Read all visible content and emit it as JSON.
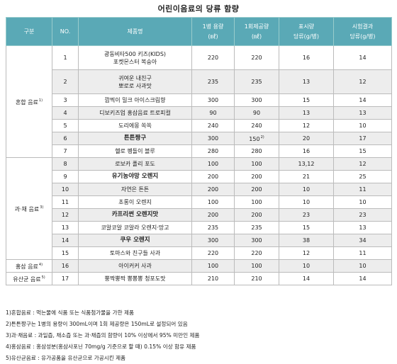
{
  "title": "어린이음료의 당류 함량",
  "table": {
    "header": [
      [
        "구분"
      ],
      [
        "NO."
      ],
      [
        "제품명"
      ],
      [
        "1병 용량",
        "(㎖)"
      ],
      [
        "1회제공량",
        "(㎖)"
      ],
      [
        "표시량",
        "당류(g/병)"
      ],
      [
        "시험결과",
        "당류(g/병)"
      ]
    ],
    "groups": [
      {
        "label": "혼합 음료",
        "note": "1)",
        "rows": [
          {
            "no": 1,
            "name": [
              "광동비타500 키즈(KIDS)",
              "포켓몬스터 복숭아"
            ],
            "bottle": 220,
            "serving": 220,
            "labeled": 16,
            "tested": 14
          },
          {
            "no": 2,
            "name": [
              "귀여운 내친구",
              "뽀로로 사과맛"
            ],
            "bottle": 235,
            "serving": 235,
            "labeled": 13,
            "tested": 12
          },
          {
            "no": 3,
            "name": [
              "깜찍이 밀크 아이스크림향"
            ],
            "bottle": 300,
            "serving": 300,
            "labeled": 15,
            "tested": 14
          },
          {
            "no": 4,
            "name": [
              "디보키즈업 홍삼음료 트로피컬"
            ],
            "bottle": 90,
            "serving": 90,
            "labeled": 13,
            "tested": 13
          },
          {
            "no": 5,
            "name": [
              "도리에몽 쏙쏙"
            ],
            "bottle": 240,
            "serving": 240,
            "labeled": 12,
            "tested": 10
          },
          {
            "no": 6,
            "name": [
              "튼튼짱구"
            ],
            "bold": true,
            "bottle": 300,
            "serving": 150,
            "serving_note": "2)",
            "labeled": 20,
            "tested": 17
          },
          {
            "no": 7,
            "name": [
              "헬로 펭돌이 블루"
            ],
            "bottle": 280,
            "serving": 280,
            "labeled": 16,
            "tested": 15
          }
        ]
      },
      {
        "label": "과·채 음료",
        "note": "3)",
        "rows": [
          {
            "no": 8,
            "name": [
              "로보카 폴리 포도"
            ],
            "bottle": 100,
            "serving": 100,
            "labeled": "13,12",
            "tested": 12
          },
          {
            "no": 9,
            "name": [
              "유기농야망 오렌지"
            ],
            "bold": true,
            "bottle": 200,
            "serving": 200,
            "labeled": 21,
            "tested": 25
          },
          {
            "no": 10,
            "name": [
              "자연은 튼튼"
            ],
            "bottle": 200,
            "serving": 200,
            "labeled": 10,
            "tested": 11
          },
          {
            "no": 11,
            "name": [
              "초롱이 오렌지"
            ],
            "bottle": 100,
            "serving": 100,
            "labeled": 10,
            "tested": 10
          },
          {
            "no": 12,
            "name": [
              "카프리썬 오렌지맛"
            ],
            "bold": true,
            "bottle": 200,
            "serving": 200,
            "labeled": 23,
            "tested": 23
          },
          {
            "no": 13,
            "name": [
              "코알코알 코알라 오렌지·망고"
            ],
            "bottle": 235,
            "serving": 235,
            "labeled": 15,
            "tested": 13
          },
          {
            "no": 14,
            "name": [
              "쿠우 오렌지"
            ],
            "bold": true,
            "bottle": 300,
            "serving": 300,
            "labeled": 38,
            "tested": 34
          },
          {
            "no": 15,
            "name": [
              "토마스와 친구들 사과"
            ],
            "bottle": 220,
            "serving": 220,
            "labeled": 12,
            "tested": 11
          }
        ]
      },
      {
        "label": "홍삼 음료",
        "note": "4)",
        "rows": [
          {
            "no": 16,
            "name": [
              "아이커커 사과"
            ],
            "bottle": 100,
            "serving": 100,
            "labeled": 10,
            "tested": 10
          }
        ]
      },
      {
        "label": "유산균 음료",
        "note": "5)",
        "rows": [
          {
            "no": 17,
            "name": [
              "뿡짝뿡짝 뽕뽕뽕 청포도맛"
            ],
            "bottle": 210,
            "serving": 210,
            "labeled": 14,
            "tested": 14
          }
        ]
      }
    ]
  },
  "notes": [
    "1)혼합음료 : 먹는물에 식품 또는 식품첨가물을 가한 제품",
    "2)튼튼짱구는 1병의 용량이 300mL이며 1회 제공량은 150mL로 설정되어 있음",
    "3)과·채음료 : 과일즙, 채소즙 또는 과·채즙의 함량이 10% 이상에서 95% 미만인 제품",
    "4)홍삼음료 : 홍삼성분(홍삼사포닌 70mg/g 기준으로 할 때) 0.15% 이상 함유 제품",
    "5)유산균음료 : 유가공품을 유산균으로 가공시킨 제품"
  ]
}
